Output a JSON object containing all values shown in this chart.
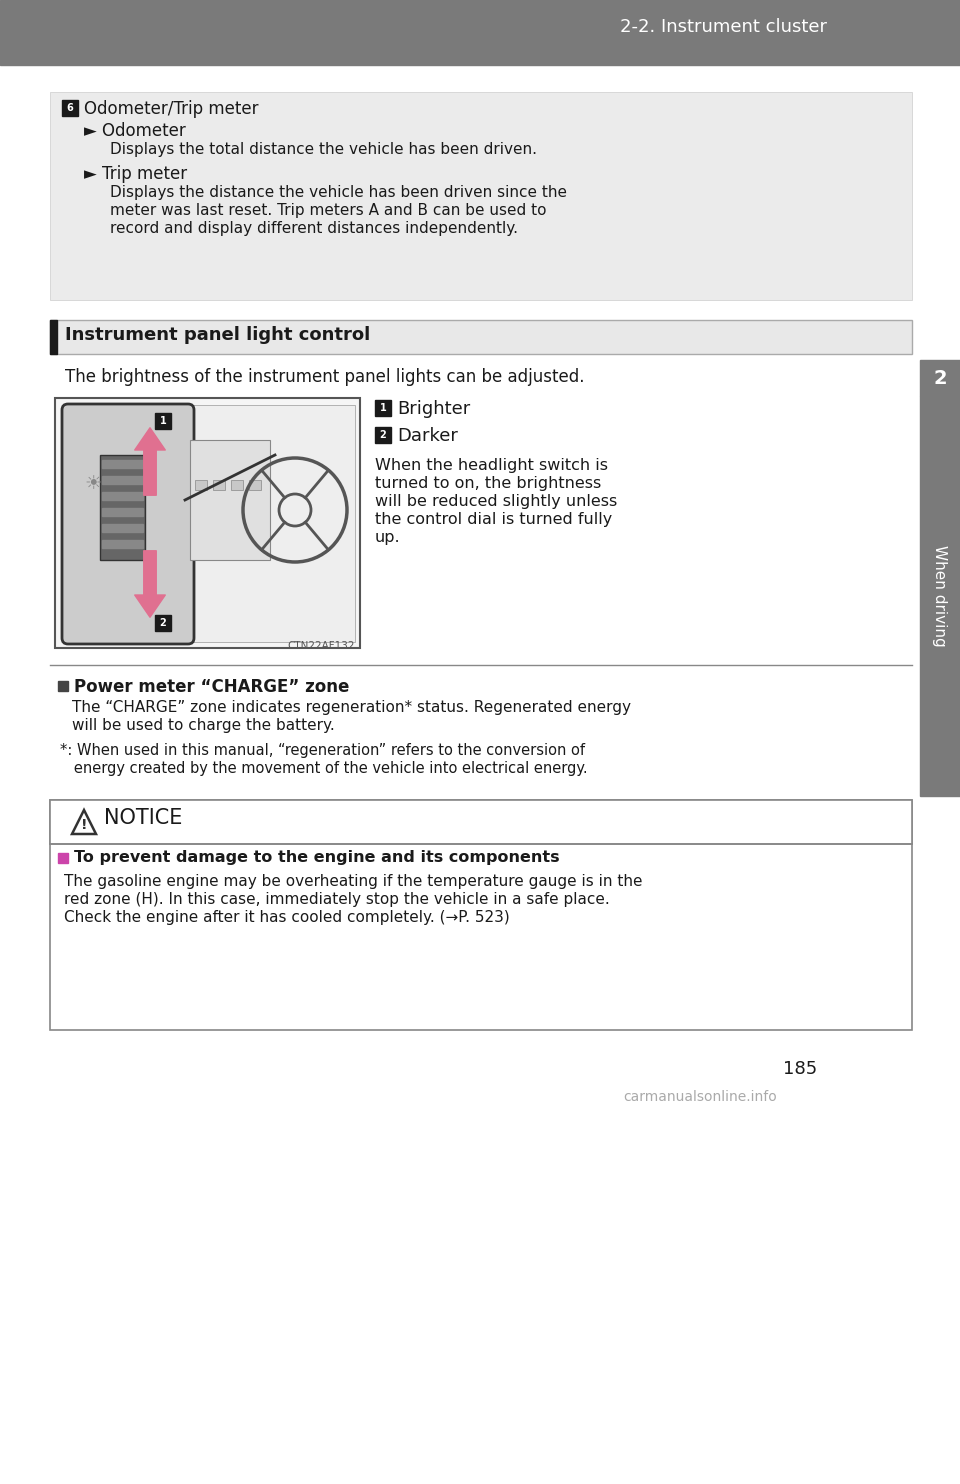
{
  "page_bg": "#ffffff",
  "header_bg": "#7a7a7a",
  "header_text": "2-2. Instrument cluster",
  "header_text_color": "#ffffff",
  "sidebar_bg": "#7a7a7a",
  "sidebar_text": "When driving",
  "sidebar_number": "2",
  "sidebar_text_color": "#ffffff",
  "box1_bg": "#ebebeb",
  "box1_title_badge": "6",
  "box1_title": "Odometer/Trip meter",
  "box1_sub1": "► Odometer",
  "box1_sub1_body": "Displays the total distance the vehicle has been driven.",
  "box1_sub2": "► Trip meter",
  "box1_sub2_body1": "Displays the distance the vehicle has been driven since the",
  "box1_sub2_body2": "meter was last reset. Trip meters A and B can be used to",
  "box1_sub2_body3": "record and display different distances independently.",
  "section_title": "Instrument panel light control",
  "intro_text": "The brightness of the instrument panel lights can be adjusted.",
  "label1_text": "Brighter",
  "label2_text": "Darker",
  "when_text1": "When the headlight switch is",
  "when_text2": "turned to on, the brightness",
  "when_text3": "will be reduced slightly unless",
  "when_text4": "the control dial is turned fully",
  "when_text5": "up.",
  "image_caption": "CTN22AF132",
  "power_title": "Power meter “CHARGE” zone",
  "power_body1": "The “CHARGE” zone indicates regeneration* status. Regenerated energy",
  "power_body2": "will be used to charge the battery.",
  "power_footnote1": "*: When used in this manual, “regeneration” refers to the conversion of",
  "power_footnote2": "   energy created by the movement of the vehicle into electrical energy.",
  "notice_title": "NOTICE",
  "notice_sub_title": "To prevent damage to the engine and its components",
  "notice_body1": "The gasoline engine may be overheating if the temperature gauge is in the",
  "notice_body2": "red zone (H). In this case, immediately stop the vehicle in a safe place.",
  "notice_body3": "Check the engine after it has cooled completely. (→P. 523)",
  "page_number": "185",
  "watermark": "carmanualsonline.info",
  "arrow_color": "#e07090",
  "badge_bg": "#1a1a1a",
  "badge_text_color": "#ffffff",
  "notice_sub_square_color": "#cc44aa",
  "power_square_color": "#444444"
}
